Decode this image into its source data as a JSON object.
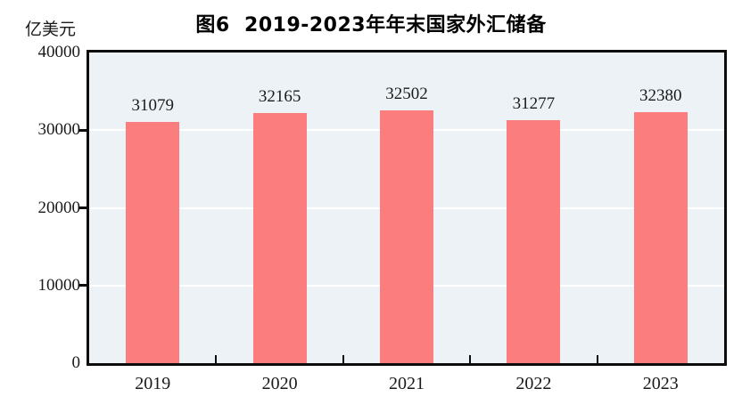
{
  "chart_data": {
    "type": "bar",
    "title": "图6  2019-2023年年末国家外汇储备",
    "unit_label": "亿美元",
    "categories": [
      "2019",
      "2020",
      "2021",
      "2022",
      "2023"
    ],
    "values": [
      31079,
      32165,
      32502,
      31277,
      32380
    ],
    "series_name": "年末国家外汇储备",
    "xlabel": "",
    "ylabel": "亿美元",
    "ylim": [
      0,
      40000
    ],
    "yticks": [
      0,
      10000,
      20000,
      30000,
      40000
    ],
    "grid": "horizontal",
    "legend_position": "none",
    "bar_color": "#fc7d7d",
    "plot_background": "#ecf2f5",
    "gridline_color": "#ffffff",
    "axis_color": "#0d0d0d",
    "label_color": "#1a1a1a"
  }
}
